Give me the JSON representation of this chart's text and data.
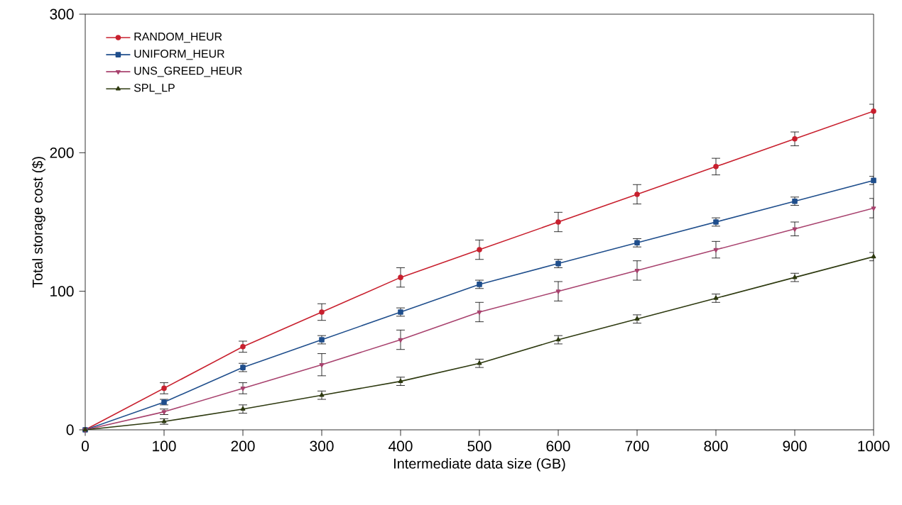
{
  "chart_data": {
    "type": "line",
    "xlabel": "Intermediate data size (GB)",
    "ylabel": "Total storage cost ($)",
    "x": [
      0,
      100,
      200,
      300,
      400,
      500,
      600,
      700,
      800,
      900,
      1000
    ],
    "xlim": [
      0,
      1000
    ],
    "xticks": [
      0,
      100,
      200,
      300,
      400,
      500,
      600,
      700,
      800,
      900,
      1000
    ],
    "ylim": [
      0,
      300
    ],
    "yticks": [
      0,
      100,
      200,
      300
    ],
    "legend": "top left",
    "grid": false,
    "line_style": "solid",
    "series": [
      {
        "name": "RANDOM_HEUR",
        "color": "#c8202e",
        "marker": "circle",
        "values": [
          0,
          30,
          60,
          85,
          110,
          130,
          150,
          170,
          190,
          210,
          230
        ],
        "errors": [
          null,
          4,
          4,
          6,
          7,
          7,
          7,
          7,
          6,
          5,
          5
        ]
      },
      {
        "name": "UNIFORM_HEUR",
        "color": "#1f4e8c",
        "marker": "square",
        "values": [
          0,
          20,
          45,
          65,
          85,
          105,
          120,
          135,
          150,
          165,
          180
        ],
        "errors": [
          null,
          2,
          3,
          3,
          3,
          3,
          3,
          3,
          3,
          3,
          3
        ]
      },
      {
        "name": "UNS_GREED_HEUR",
        "color": "#a8426e",
        "marker": "triangle-down",
        "values": [
          0,
          13,
          30,
          47,
          65,
          85,
          100,
          115,
          130,
          145,
          160
        ],
        "errors": [
          null,
          2,
          4,
          8,
          7,
          7,
          7,
          7,
          6,
          5,
          7
        ]
      },
      {
        "name": "SPL_LP",
        "color": "#2e3a10",
        "marker": "triangle",
        "values": [
          0,
          6,
          15,
          25,
          35,
          48,
          65,
          80,
          95,
          110,
          125
        ],
        "errors": [
          null,
          2,
          3,
          3,
          3,
          3,
          3,
          3,
          3,
          3,
          3
        ]
      }
    ]
  }
}
